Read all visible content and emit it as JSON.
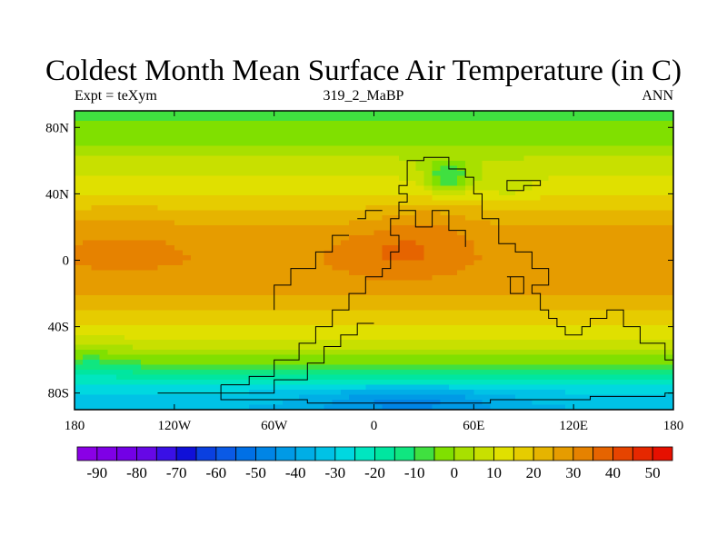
{
  "title": "Coldest Month Mean Surface Air Temperature (in C)",
  "subtitle_left": "Expt = teXym",
  "subtitle_center": "319_2_MaBP",
  "subtitle_right": "ANN",
  "chart_data": {
    "type": "heatmap",
    "projection": "cylindrical-equidistant",
    "xlim": [
      -180,
      180
    ],
    "ylim": [
      -90,
      90
    ],
    "x_ticks": [
      {
        "value": -180,
        "label": "180"
      },
      {
        "value": -120,
        "label": "120W"
      },
      {
        "value": -60,
        "label": "60W"
      },
      {
        "value": 0,
        "label": "0"
      },
      {
        "value": 60,
        "label": "60E"
      },
      {
        "value": 120,
        "label": "120E"
      },
      {
        "value": 180,
        "label": "180"
      }
    ],
    "y_ticks": [
      {
        "value": 80,
        "label": "80N"
      },
      {
        "value": 40,
        "label": "40N"
      },
      {
        "value": 0,
        "label": "0"
      },
      {
        "value": -40,
        "label": "40S"
      },
      {
        "value": -80,
        "label": "80S"
      }
    ],
    "colorbar": {
      "levels": [
        -95,
        -90,
        -85,
        -80,
        -75,
        -70,
        -65,
        -60,
        -55,
        -50,
        -45,
        -40,
        -35,
        -30,
        -25,
        -20,
        -15,
        -10,
        -5,
        0,
        5,
        10,
        15,
        20,
        25,
        30,
        35,
        40,
        45,
        50,
        55
      ],
      "tick_labels": [
        "-90",
        "-80",
        "-70",
        "-60",
        "-50",
        "-40",
        "-30",
        "-20",
        "-10",
        "0",
        "10",
        "20",
        "30",
        "40",
        "50"
      ],
      "colors": [
        "#8a00e6",
        "#7f00e6",
        "#7300e6",
        "#6608e6",
        "#3a10e6",
        "#1010d8",
        "#0a40e0",
        "#0a5ae6",
        "#0070e6",
        "#0085e6",
        "#009ae6",
        "#00aee6",
        "#00c2e6",
        "#00d8e0",
        "#00e6c0",
        "#00e6a0",
        "#10e680",
        "#40e040",
        "#80e000",
        "#a8e000",
        "#c8e000",
        "#e0e000",
        "#e6cc00",
        "#e6b400",
        "#e69c00",
        "#e68200",
        "#e66400",
        "#e64400",
        "#e62800",
        "#e61000"
      ]
    },
    "field_description": "Zonally banded temperature: about -10 to 0 C near 85N and 85S, 15-25 C in mid-latitudes, 25-35 C in the tropics; continental interior maxima near 30-40 C around 5N 10E; cold highland near 50N 45E; Antarctic coast -20 to -40 C.",
    "zonal_profile": {
      "lat": [
        -90,
        -80,
        -70,
        -60,
        -50,
        -40,
        -30,
        -20,
        -10,
        0,
        10,
        20,
        30,
        40,
        50,
        60,
        70,
        80,
        90
      ],
      "temp": [
        -35,
        -30,
        -18,
        -2,
        8,
        14,
        20,
        25,
        28,
        29,
        28,
        25,
        20,
        14,
        10,
        6,
        0,
        -4,
        -6
      ]
    },
    "continent_outline": [
      [
        -92,
        -75
      ],
      [
        -75,
        -75
      ],
      [
        -75,
        -70
      ],
      [
        -60,
        -70
      ],
      [
        -60,
        -60
      ],
      [
        -45,
        -60
      ],
      [
        -45,
        -50
      ],
      [
        -35,
        -50
      ],
      [
        -35,
        -40
      ],
      [
        -25,
        -40
      ],
      [
        -25,
        -30
      ],
      [
        -15,
        -30
      ],
      [
        -15,
        -20
      ],
      [
        -5,
        -20
      ],
      [
        -5,
        -10
      ],
      [
        5,
        -10
      ],
      [
        5,
        -5
      ],
      [
        10,
        -5
      ],
      [
        10,
        5
      ],
      [
        15,
        5
      ],
      [
        15,
        15
      ],
      [
        10,
        15
      ],
      [
        10,
        25
      ],
      [
        15,
        25
      ],
      [
        15,
        35
      ],
      [
        20,
        35
      ],
      [
        20,
        40
      ],
      [
        15,
        40
      ],
      [
        15,
        45
      ],
      [
        20,
        45
      ],
      [
        20,
        60
      ],
      [
        30,
        60
      ],
      [
        30,
        62
      ],
      [
        45,
        62
      ],
      [
        45,
        55
      ],
      [
        55,
        55
      ],
      [
        55,
        50
      ],
      [
        60,
        50
      ],
      [
        60,
        40
      ],
      [
        65,
        40
      ],
      [
        65,
        25
      ],
      [
        75,
        25
      ],
      [
        75,
        10
      ],
      [
        85,
        10
      ],
      [
        85,
        5
      ],
      [
        95,
        5
      ],
      [
        95,
        -5
      ],
      [
        105,
        -5
      ],
      [
        105,
        -15
      ],
      [
        95,
        -15
      ],
      [
        95,
        -20
      ],
      [
        100,
        -20
      ],
      [
        100,
        -30
      ],
      [
        105,
        -30
      ],
      [
        105,
        -35
      ],
      [
        110,
        -35
      ],
      [
        110,
        -40
      ],
      [
        115,
        -40
      ],
      [
        115,
        -45
      ],
      [
        125,
        -45
      ],
      [
        125,
        -40
      ],
      [
        130,
        -40
      ],
      [
        130,
        -35
      ],
      [
        140,
        -35
      ],
      [
        140,
        -30
      ],
      [
        150,
        -30
      ],
      [
        150,
        -40
      ],
      [
        160,
        -40
      ],
      [
        160,
        -50
      ],
      [
        175,
        -50
      ],
      [
        175,
        -60
      ],
      [
        180,
        -60
      ],
      [
        180,
        -80
      ],
      [
        175,
        -80
      ],
      [
        175,
        -82
      ],
      [
        130,
        -82
      ],
      [
        130,
        -84
      ],
      [
        70,
        -84
      ],
      [
        70,
        -86
      ],
      [
        0,
        -86
      ],
      [
        -40,
        -86
      ],
      [
        -40,
        -84
      ],
      [
        -92,
        -84
      ],
      [
        -92,
        -75
      ]
    ],
    "inner_coastlines": [
      [
        [
          -130,
          -80
        ],
        [
          -60,
          -80
        ],
        [
          -60,
          -72
        ],
        [
          -40,
          -72
        ],
        [
          -40,
          -62
        ],
        [
          -30,
          -62
        ],
        [
          -30,
          -52
        ],
        [
          -20,
          -52
        ],
        [
          -20,
          -45
        ],
        [
          -10,
          -45
        ],
        [
          -10,
          -38
        ],
        [
          0,
          -38
        ]
      ],
      [
        [
          -60,
          -30
        ],
        [
          -60,
          -15
        ],
        [
          -50,
          -15
        ],
        [
          -50,
          -5
        ],
        [
          -35,
          -5
        ],
        [
          -35,
          5
        ],
        [
          -25,
          5
        ],
        [
          -25,
          15
        ],
        [
          -15,
          15
        ]
      ],
      [
        [
          15,
          30
        ],
        [
          25,
          30
        ],
        [
          25,
          20
        ],
        [
          35,
          20
        ],
        [
          35,
          30
        ],
        [
          45,
          30
        ],
        [
          45,
          18
        ],
        [
          55,
          18
        ],
        [
          55,
          8
        ]
      ],
      [
        [
          80,
          -10
        ],
        [
          90,
          -10
        ],
        [
          90,
          -20
        ],
        [
          82,
          -20
        ],
        [
          82,
          -10
        ]
      ],
      [
        [
          -10,
          25
        ],
        [
          -5,
          25
        ],
        [
          -5,
          30
        ],
        [
          5,
          30
        ]
      ]
    ],
    "small_islands": [
      [
        [
          80,
          42
        ],
        [
          90,
          42
        ],
        [
          90,
          45
        ],
        [
          100,
          45
        ],
        [
          100,
          48
        ],
        [
          80,
          48
        ],
        [
          80,
          42
        ]
      ]
    ]
  }
}
